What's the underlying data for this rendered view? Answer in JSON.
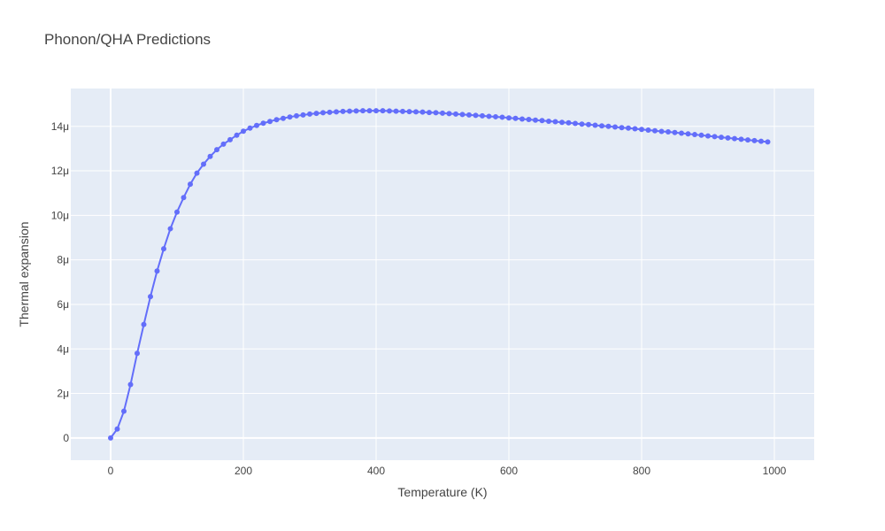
{
  "chart_data": {
    "type": "line",
    "title": "Phonon/QHA Predictions",
    "xlabel": "Temperature (K)",
    "ylabel": "Thermal expansion",
    "xlim": [
      -60,
      1060
    ],
    "ylim": [
      -1e-06,
      1.57e-05
    ],
    "x_ticks": [
      0,
      200,
      400,
      600,
      800,
      1000
    ],
    "y_ticks": [
      0,
      2e-06,
      4e-06,
      6e-06,
      8e-06,
      1e-05,
      1.2e-05,
      1.4e-05
    ],
    "x_tick_labels": [
      "0",
      "200",
      "400",
      "600",
      "800",
      "1000"
    ],
    "y_tick_labels": [
      "0",
      "2μ",
      "4μ",
      "6μ",
      "8μ",
      "10μ",
      "12μ",
      "14μ"
    ],
    "grid": true,
    "mode": "lines+markers",
    "colors": {
      "line": "#636efa",
      "plot_bg": "#e5ecf6",
      "grid": "#ffffff",
      "text": "#444444"
    },
    "series": [
      {
        "x": [
          0,
          10,
          20,
          30,
          40,
          50,
          60,
          70,
          80,
          90,
          100,
          110,
          120,
          130,
          140,
          150,
          160,
          170,
          180,
          190,
          200,
          210,
          220,
          230,
          240,
          250,
          260,
          270,
          280,
          290,
          300,
          310,
          320,
          330,
          340,
          350,
          360,
          370,
          380,
          390,
          400,
          410,
          420,
          430,
          440,
          450,
          460,
          470,
          480,
          490,
          500,
          510,
          520,
          530,
          540,
          550,
          560,
          570,
          580,
          590,
          600,
          610,
          620,
          630,
          640,
          650,
          660,
          670,
          680,
          690,
          700,
          710,
          720,
          730,
          740,
          750,
          760,
          770,
          780,
          790,
          800,
          810,
          820,
          830,
          840,
          850,
          860,
          870,
          880,
          890,
          900,
          910,
          920,
          930,
          940,
          950,
          960,
          970,
          980,
          990
        ],
        "y": [
          0,
          4e-07,
          1.2e-06,
          2.4e-06,
          3.8e-06,
          5.1e-06,
          6.35e-06,
          7.5e-06,
          8.5e-06,
          9.4e-06,
          1.015e-05,
          1.08e-05,
          1.14e-05,
          1.19e-05,
          1.23e-05,
          1.265e-05,
          1.295e-05,
          1.32e-05,
          1.34e-05,
          1.36e-05,
          1.378e-05,
          1.392e-05,
          1.404e-05,
          1.414e-05,
          1.422e-05,
          1.43e-05,
          1.436e-05,
          1.442e-05,
          1.447e-05,
          1.451e-05,
          1.455e-05,
          1.458e-05,
          1.461e-05,
          1.463e-05,
          1.465e-05,
          1.467e-05,
          1.468e-05,
          1.469e-05,
          1.47e-05,
          1.47e-05,
          1.47e-05,
          1.47e-05,
          1.469e-05,
          1.468e-05,
          1.467e-05,
          1.466e-05,
          1.465e-05,
          1.464e-05,
          1.462e-05,
          1.461e-05,
          1.459e-05,
          1.457e-05,
          1.455e-05,
          1.453e-05,
          1.451e-05,
          1.449e-05,
          1.447e-05,
          1.445e-05,
          1.443e-05,
          1.441e-05,
          1.438e-05,
          1.436e-05,
          1.433e-05,
          1.431e-05,
          1.428e-05,
          1.426e-05,
          1.423e-05,
          1.421e-05,
          1.418e-05,
          1.416e-05,
          1.413e-05,
          1.41e-05,
          1.408e-05,
          1.405e-05,
          1.402e-05,
          1.4e-05,
          1.397e-05,
          1.394e-05,
          1.392e-05,
          1.389e-05,
          1.386e-05,
          1.383e-05,
          1.38e-05,
          1.377e-05,
          1.375e-05,
          1.372e-05,
          1.369e-05,
          1.366e-05,
          1.363e-05,
          1.36e-05,
          1.357e-05,
          1.354e-05,
          1.351e-05,
          1.348e-05,
          1.345e-05,
          1.342e-05,
          1.339e-05,
          1.336e-05,
          1.333e-05,
          1.33e-05
        ]
      }
    ]
  }
}
